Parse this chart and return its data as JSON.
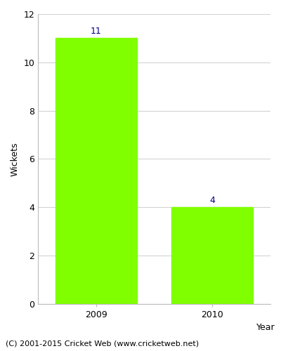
{
  "categories": [
    "2009",
    "2010"
  ],
  "values": [
    11,
    4
  ],
  "bar_color": "#7fff00",
  "bar_edgecolor": "#7fff00",
  "label_color": "#00008b",
  "xlabel": "Year",
  "ylabel": "Wickets",
  "ylim": [
    0,
    12
  ],
  "yticks": [
    0,
    2,
    4,
    6,
    8,
    10,
    12
  ],
  "label_fontsize": 9,
  "axis_label_fontsize": 9,
  "tick_fontsize": 9,
  "footer_text": "(C) 2001-2015 Cricket Web (www.cricketweb.net)",
  "footer_fontsize": 8,
  "background_color": "#ffffff",
  "grid_color": "#d3d3d3"
}
